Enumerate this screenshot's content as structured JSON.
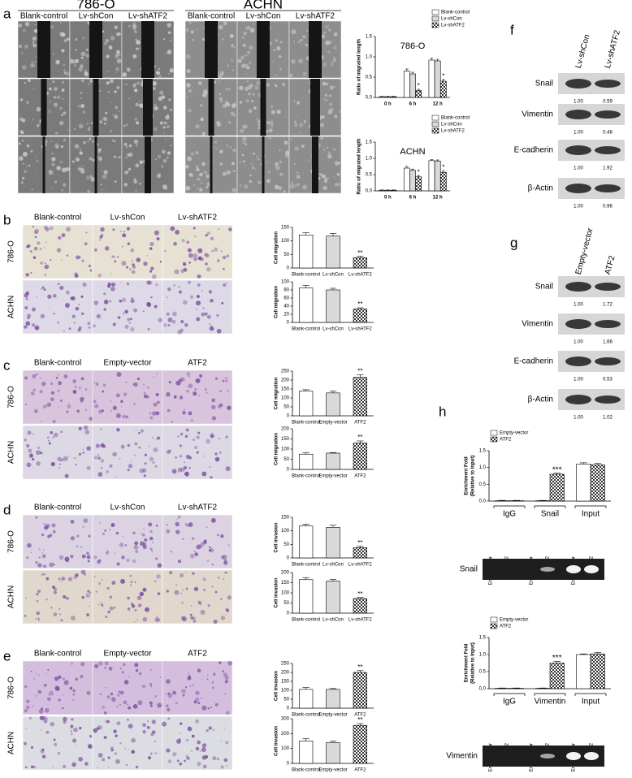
{
  "micrographs": [
    {
      "letter": "a",
      "groups": [
        "786-O",
        "ACHN"
      ],
      "columns": [
        "Blank-control",
        "Lv-shCon",
        "Lv-shATF2",
        "Blank-control",
        "Lv-shCon",
        "Lv-shATF2"
      ]
    },
    {
      "letter": "b",
      "columns": [
        "Blank-control",
        "Lv-shCon",
        "Lv-shATF2"
      ],
      "rows": [
        "786-O",
        "ACHN"
      ]
    },
    {
      "letter": "c",
      "columns": [
        "Blank-control",
        "Empty-vector",
        "ATF2"
      ],
      "rows": [
        "786-O",
        "ACHN"
      ]
    },
    {
      "letter": "d",
      "columns": [
        "Blank-control",
        "Lv-shCon",
        "Lv-shATF2"
      ],
      "rows": [
        "786-O",
        "ACHN"
      ]
    },
    {
      "letter": "e",
      "columns": [
        "Blank-control",
        "Empty-vector",
        "ATF2"
      ],
      "rows": [
        "786-O",
        "ACHN"
      ]
    }
  ],
  "blots": [
    {
      "letter": "f",
      "lanes": [
        "Lv-shCon",
        "Lv-shATF2"
      ],
      "rows": [
        {
          "label": "Snail",
          "values": [
            "1.00",
            "0.59"
          ]
        },
        {
          "label": "Vimentin",
          "values": [
            "1.00",
            "0.48"
          ]
        },
        {
          "label": "E-cadherin",
          "values": [
            "1.00",
            "1.92"
          ]
        },
        {
          "label": "β-Actin",
          "values": [
            "1.00",
            "0.96"
          ]
        }
      ]
    },
    {
      "letter": "g",
      "lanes": [
        "Empty-vector",
        "ATF2"
      ],
      "rows": [
        {
          "label": "Snail",
          "values": [
            "1.00",
            "1.72"
          ]
        },
        {
          "label": "Vimentin",
          "values": [
            "1.00",
            "1.66"
          ]
        },
        {
          "label": "E-cadherin",
          "values": [
            "1.00",
            "0.53"
          ]
        },
        {
          "label": "β-Actin",
          "values": [
            "1.00",
            "1.02"
          ]
        }
      ]
    }
  ],
  "chip": {
    "letter": "h",
    "gels": [
      {
        "label": "Snail",
        "lanes": [
          "Empty-vector",
          "ATF2",
          "Empty-vector",
          "ATF2",
          "Empty-vector",
          "ATF2"
        ]
      },
      {
        "label": "Vimentin",
        "lanes": [
          "Empty-vector",
          "ATF2",
          "Empty-vector",
          "ATF2",
          "Empty-vector",
          "ATF2"
        ]
      }
    ]
  },
  "chart_data": [
    {
      "type": "bar",
      "title": "786-O",
      "ylabel": [
        "Ratio of migrated length"
      ],
      "categories": [
        "0 h",
        "6 h",
        "12 h"
      ],
      "series": [
        {
          "name": "Blank-control",
          "color": "#ffffff",
          "checkered": false,
          "values": [
            0.02,
            0.65,
            0.92
          ],
          "errors": [
            0.01,
            0.05,
            0.05
          ]
        },
        {
          "name": "Lv-shCon",
          "color": "#d9d9d9",
          "checkered": false,
          "values": [
            0.02,
            0.58,
            0.9
          ],
          "errors": [
            0.01,
            0.04,
            0.04
          ]
        },
        {
          "name": "Lv-shATF2",
          "color": "#333333",
          "checkered": true,
          "values": [
            0.02,
            0.17,
            0.4
          ],
          "errors": [
            0.01,
            0.03,
            0.04
          ]
        }
      ],
      "ylim": [
        0,
        1.5
      ],
      "yticks": [
        {
          "value": 0,
          "label": "0.0"
        },
        0.5,
        {
          "value": 1,
          "label": "1.0"
        },
        1.5
      ],
      "grid": false,
      "legend": "upper right",
      "annotations": [
        {
          "text": "*",
          "category": "6 h",
          "series": "Lv-shATF2"
        },
        {
          "text": "*",
          "category": "12 h",
          "series": "Lv-shATF2"
        }
      ]
    },
    {
      "type": "bar",
      "title": "ACHN",
      "ylabel": [
        "Ratio of migrated length"
      ],
      "categories": [
        "0 h",
        "6 h",
        "12 h"
      ],
      "series": [
        {
          "name": "Blank-control",
          "color": "#ffffff",
          "checkered": false,
          "values": [
            0.02,
            0.7,
            0.93
          ],
          "errors": [
            0.01,
            0.05,
            0.03
          ]
        },
        {
          "name": "Lv-shCon",
          "color": "#d9d9d9",
          "checkered": false,
          "values": [
            0.02,
            0.63,
            0.92
          ],
          "errors": [
            0.01,
            0.04,
            0.03
          ]
        },
        {
          "name": "Lv-shATF2",
          "color": "#333333",
          "checkered": true,
          "values": [
            0.02,
            0.43,
            0.57
          ],
          "errors": [
            0.01,
            0.04,
            0.04
          ]
        }
      ],
      "ylim": [
        0,
        1.5
      ],
      "yticks": [
        {
          "value": 0,
          "label": "0.0"
        },
        0.5,
        {
          "value": 1,
          "label": "1.0"
        },
        1.5
      ],
      "grid": false,
      "legend": "upper right",
      "annotations": [
        {
          "text": "*",
          "category": "6 h",
          "series": "Lv-shATF2"
        },
        {
          "text": "*",
          "category": "12 h",
          "series": "Lv-shATF2"
        }
      ]
    },
    {
      "type": "bar",
      "ylabel": [
        "Cell migration"
      ],
      "categories": [
        "Blank-control",
        "Lv-shCon",
        "Lv-shATF2"
      ],
      "values": [
        122,
        118,
        38
      ],
      "errors": [
        8,
        10,
        5
      ],
      "colors": [
        "#ffffff",
        "#d9d9d9",
        "#333333"
      ],
      "checkered": [
        false,
        false,
        true
      ],
      "ylim": [
        0,
        150
      ],
      "yticks": [
        0,
        50,
        100,
        150
      ],
      "grid": false,
      "annotations": [
        {
          "text": "**",
          "category": "Lv-shATF2"
        }
      ]
    },
    {
      "type": "bar",
      "ylabel": [
        "Cell migration"
      ],
      "categories": [
        "Blank-control",
        "Lv-shCon",
        "Lv-shATF2"
      ],
      "values": [
        85,
        80,
        33
      ],
      "errors": [
        6,
        4,
        3
      ],
      "colors": [
        "#ffffff",
        "#d9d9d9",
        "#333333"
      ],
      "checkered": [
        false,
        false,
        true
      ],
      "ylim": [
        0,
        100
      ],
      "yticks": [
        0,
        20,
        40,
        60,
        80,
        100
      ],
      "grid": false,
      "annotations": [
        {
          "text": "**",
          "category": "Lv-shATF2"
        }
      ]
    },
    {
      "type": "bar",
      "ylabel": [
        "Cell migration"
      ],
      "categories": [
        "Blank-control",
        "Empty-vector",
        "ATF2"
      ],
      "values": [
        138,
        128,
        215
      ],
      "errors": [
        8,
        10,
        15
      ],
      "colors": [
        "#ffffff",
        "#d9d9d9",
        "#333333"
      ],
      "checkered": [
        false,
        false,
        true
      ],
      "ylim": [
        0,
        250
      ],
      "yticks": [
        0,
        50,
        100,
        150,
        200,
        250
      ],
      "grid": false,
      "annotations": [
        {
          "text": "**",
          "category": "ATF2"
        }
      ]
    },
    {
      "type": "bar",
      "ylabel": [
        "Cell migration"
      ],
      "categories": [
        "Blank-control",
        "Empty-vector",
        "ATF2"
      ],
      "values": [
        75,
        80,
        130
      ],
      "errors": [
        8,
        3,
        10
      ],
      "colors": [
        "#ffffff",
        "#d9d9d9",
        "#333333"
      ],
      "checkered": [
        false,
        false,
        true
      ],
      "ylim": [
        0,
        200
      ],
      "yticks": [
        0,
        50,
        100,
        150,
        200
      ],
      "grid": false,
      "annotations": [
        {
          "text": "**",
          "category": "ATF2"
        }
      ]
    },
    {
      "type": "bar",
      "ylabel": [
        "Cell invasion"
      ],
      "categories": [
        "Blank-control",
        "Lv-shCon",
        "Lv-shATF2"
      ],
      "values": [
        118,
        113,
        38
      ],
      "errors": [
        7,
        8,
        5
      ],
      "colors": [
        "#ffffff",
        "#d9d9d9",
        "#333333"
      ],
      "checkered": [
        false,
        false,
        true
      ],
      "ylim": [
        0,
        150
      ],
      "yticks": [
        0,
        50,
        100,
        150
      ],
      "grid": false,
      "annotations": [
        {
          "text": "**",
          "category": "Lv-shATF2"
        }
      ]
    },
    {
      "type": "bar",
      "ylabel": [
        "Cell invasion"
      ],
      "categories": [
        "Blank-control",
        "Lv-shCon",
        "Lv-shATF2"
      ],
      "values": [
        165,
        158,
        72
      ],
      "errors": [
        10,
        8,
        5
      ],
      "colors": [
        "#ffffff",
        "#d9d9d9",
        "#333333"
      ],
      "checkered": [
        false,
        false,
        true
      ],
      "ylim": [
        0,
        200
      ],
      "yticks": [
        0,
        50,
        100,
        150,
        200
      ],
      "grid": false,
      "annotations": [
        {
          "text": "**",
          "category": "Lv-shATF2"
        }
      ]
    },
    {
      "type": "bar",
      "ylabel": [
        "Cell invasion"
      ],
      "categories": [
        "Blank-control",
        "Empty-vector",
        "ATF2"
      ],
      "values": [
        105,
        105,
        200
      ],
      "errors": [
        10,
        5,
        10
      ],
      "colors": [
        "#ffffff",
        "#d9d9d9",
        "#333333"
      ],
      "checkered": [
        false,
        false,
        true
      ],
      "ylim": [
        0,
        250
      ],
      "yticks": [
        0,
        50,
        100,
        150,
        200,
        250
      ],
      "grid": false,
      "annotations": [
        {
          "text": "**",
          "category": "ATF2"
        }
      ]
    },
    {
      "type": "bar",
      "ylabel": [
        "Cell invasion"
      ],
      "categories": [
        "Blank-control",
        "Empty-vector",
        "ATF2"
      ],
      "values": [
        150,
        140,
        255
      ],
      "errors": [
        15,
        10,
        12
      ],
      "colors": [
        "#ffffff",
        "#d9d9d9",
        "#333333"
      ],
      "checkered": [
        false,
        false,
        true
      ],
      "ylim": [
        0,
        300
      ],
      "yticks": [
        0,
        100,
        200,
        300
      ],
      "grid": false,
      "annotations": [
        {
          "text": "**",
          "category": "ATF2"
        }
      ]
    },
    {
      "type": "bar",
      "ylabel": [
        "Enrichment Fold",
        "(Relative to Input)"
      ],
      "categories": [
        "IgG",
        "Snail",
        "Input"
      ],
      "category_brackets": true,
      "series": [
        {
          "name": "Empty-vector",
          "color": "#ffffff",
          "checkered": false,
          "values": [
            0.01,
            0.01,
            1.1
          ],
          "errors": [
            0.01,
            0.01,
            0.04
          ]
        },
        {
          "name": "ATF2",
          "color": "#333333",
          "checkered": true,
          "values": [
            0.01,
            0.8,
            1.08
          ],
          "errors": [
            0.01,
            0.03,
            0.04
          ]
        }
      ],
      "ylim": [
        0,
        1.5
      ],
      "yticks": [
        {
          "value": 0,
          "label": "0.0"
        },
        0.5,
        {
          "value": 1,
          "label": "1.0"
        },
        1.5
      ],
      "grid": false,
      "legend": "upper left",
      "annotations": [
        {
          "text": "***",
          "category": "Snail",
          "series": "ATF2"
        }
      ]
    },
    {
      "type": "bar",
      "ylabel": [
        "Enrichment Fold",
        "(Relative to Input)"
      ],
      "categories": [
        "IgG",
        "Vimentin",
        "Input"
      ],
      "category_brackets": true,
      "series": [
        {
          "name": "Empty-vector",
          "color": "#ffffff",
          "checkered": false,
          "values": [
            0.01,
            0.01,
            1.0
          ],
          "errors": [
            0.01,
            0.01,
            0.02
          ]
        },
        {
          "name": "ATF2",
          "color": "#333333",
          "checkered": true,
          "values": [
            0.01,
            0.75,
            1.02
          ],
          "errors": [
            0.01,
            0.05,
            0.04
          ]
        }
      ],
      "ylim": [
        0,
        1.5
      ],
      "yticks": [
        {
          "value": 0,
          "label": "0.0"
        },
        0.5,
        {
          "value": 1,
          "label": "1.0"
        },
        1.5
      ],
      "grid": false,
      "legend": "upper left",
      "annotations": [
        {
          "text": "***",
          "category": "Vimentin",
          "series": "ATF2"
        }
      ]
    }
  ]
}
